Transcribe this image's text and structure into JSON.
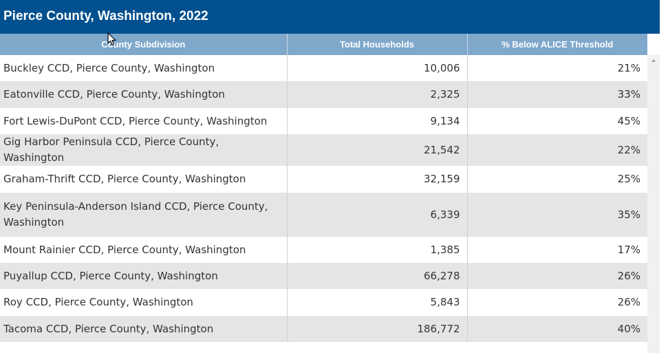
{
  "title": "Pierce County, Washington, 2022",
  "table": {
    "columns": [
      "County Subdivision",
      "Total Households",
      "% Below ALICE Threshold"
    ],
    "rows": [
      [
        "Buckley CCD, Pierce County, Washington",
        "10,006",
        "21%"
      ],
      [
        "Eatonville CCD, Pierce County, Washington",
        "2,325",
        "33%"
      ],
      [
        "Fort Lewis-DuPont CCD, Pierce County, Washington",
        "9,134",
        "45%"
      ],
      [
        "Gig Harbor Peninsula CCD, Pierce County, Washington",
        "21,542",
        "22%"
      ],
      [
        "Graham-Thrift CCD, Pierce County, Washington",
        "32,159",
        "25%"
      ],
      [
        "Key Peninsula-Anderson Island CCD, Pierce County, Washington",
        "6,339",
        "35%"
      ],
      [
        "Mount Rainier CCD, Pierce County, Washington",
        "1,385",
        "17%"
      ],
      [
        "Puyallup CCD, Pierce County, Washington",
        "66,278",
        "26%"
      ],
      [
        "Roy CCD, Pierce County, Washington",
        "5,843",
        "26%"
      ],
      [
        "Tacoma CCD, Pierce County, Washington",
        "186,772",
        "40%"
      ]
    ]
  },
  "colors": {
    "title_bg": "#02508f",
    "header_bg": "#7fa8cb",
    "row_alt_bg": "#e5e5e5"
  },
  "icons": [
    "mouse-cursor-icon",
    "scroll-up-arrow-icon"
  ]
}
